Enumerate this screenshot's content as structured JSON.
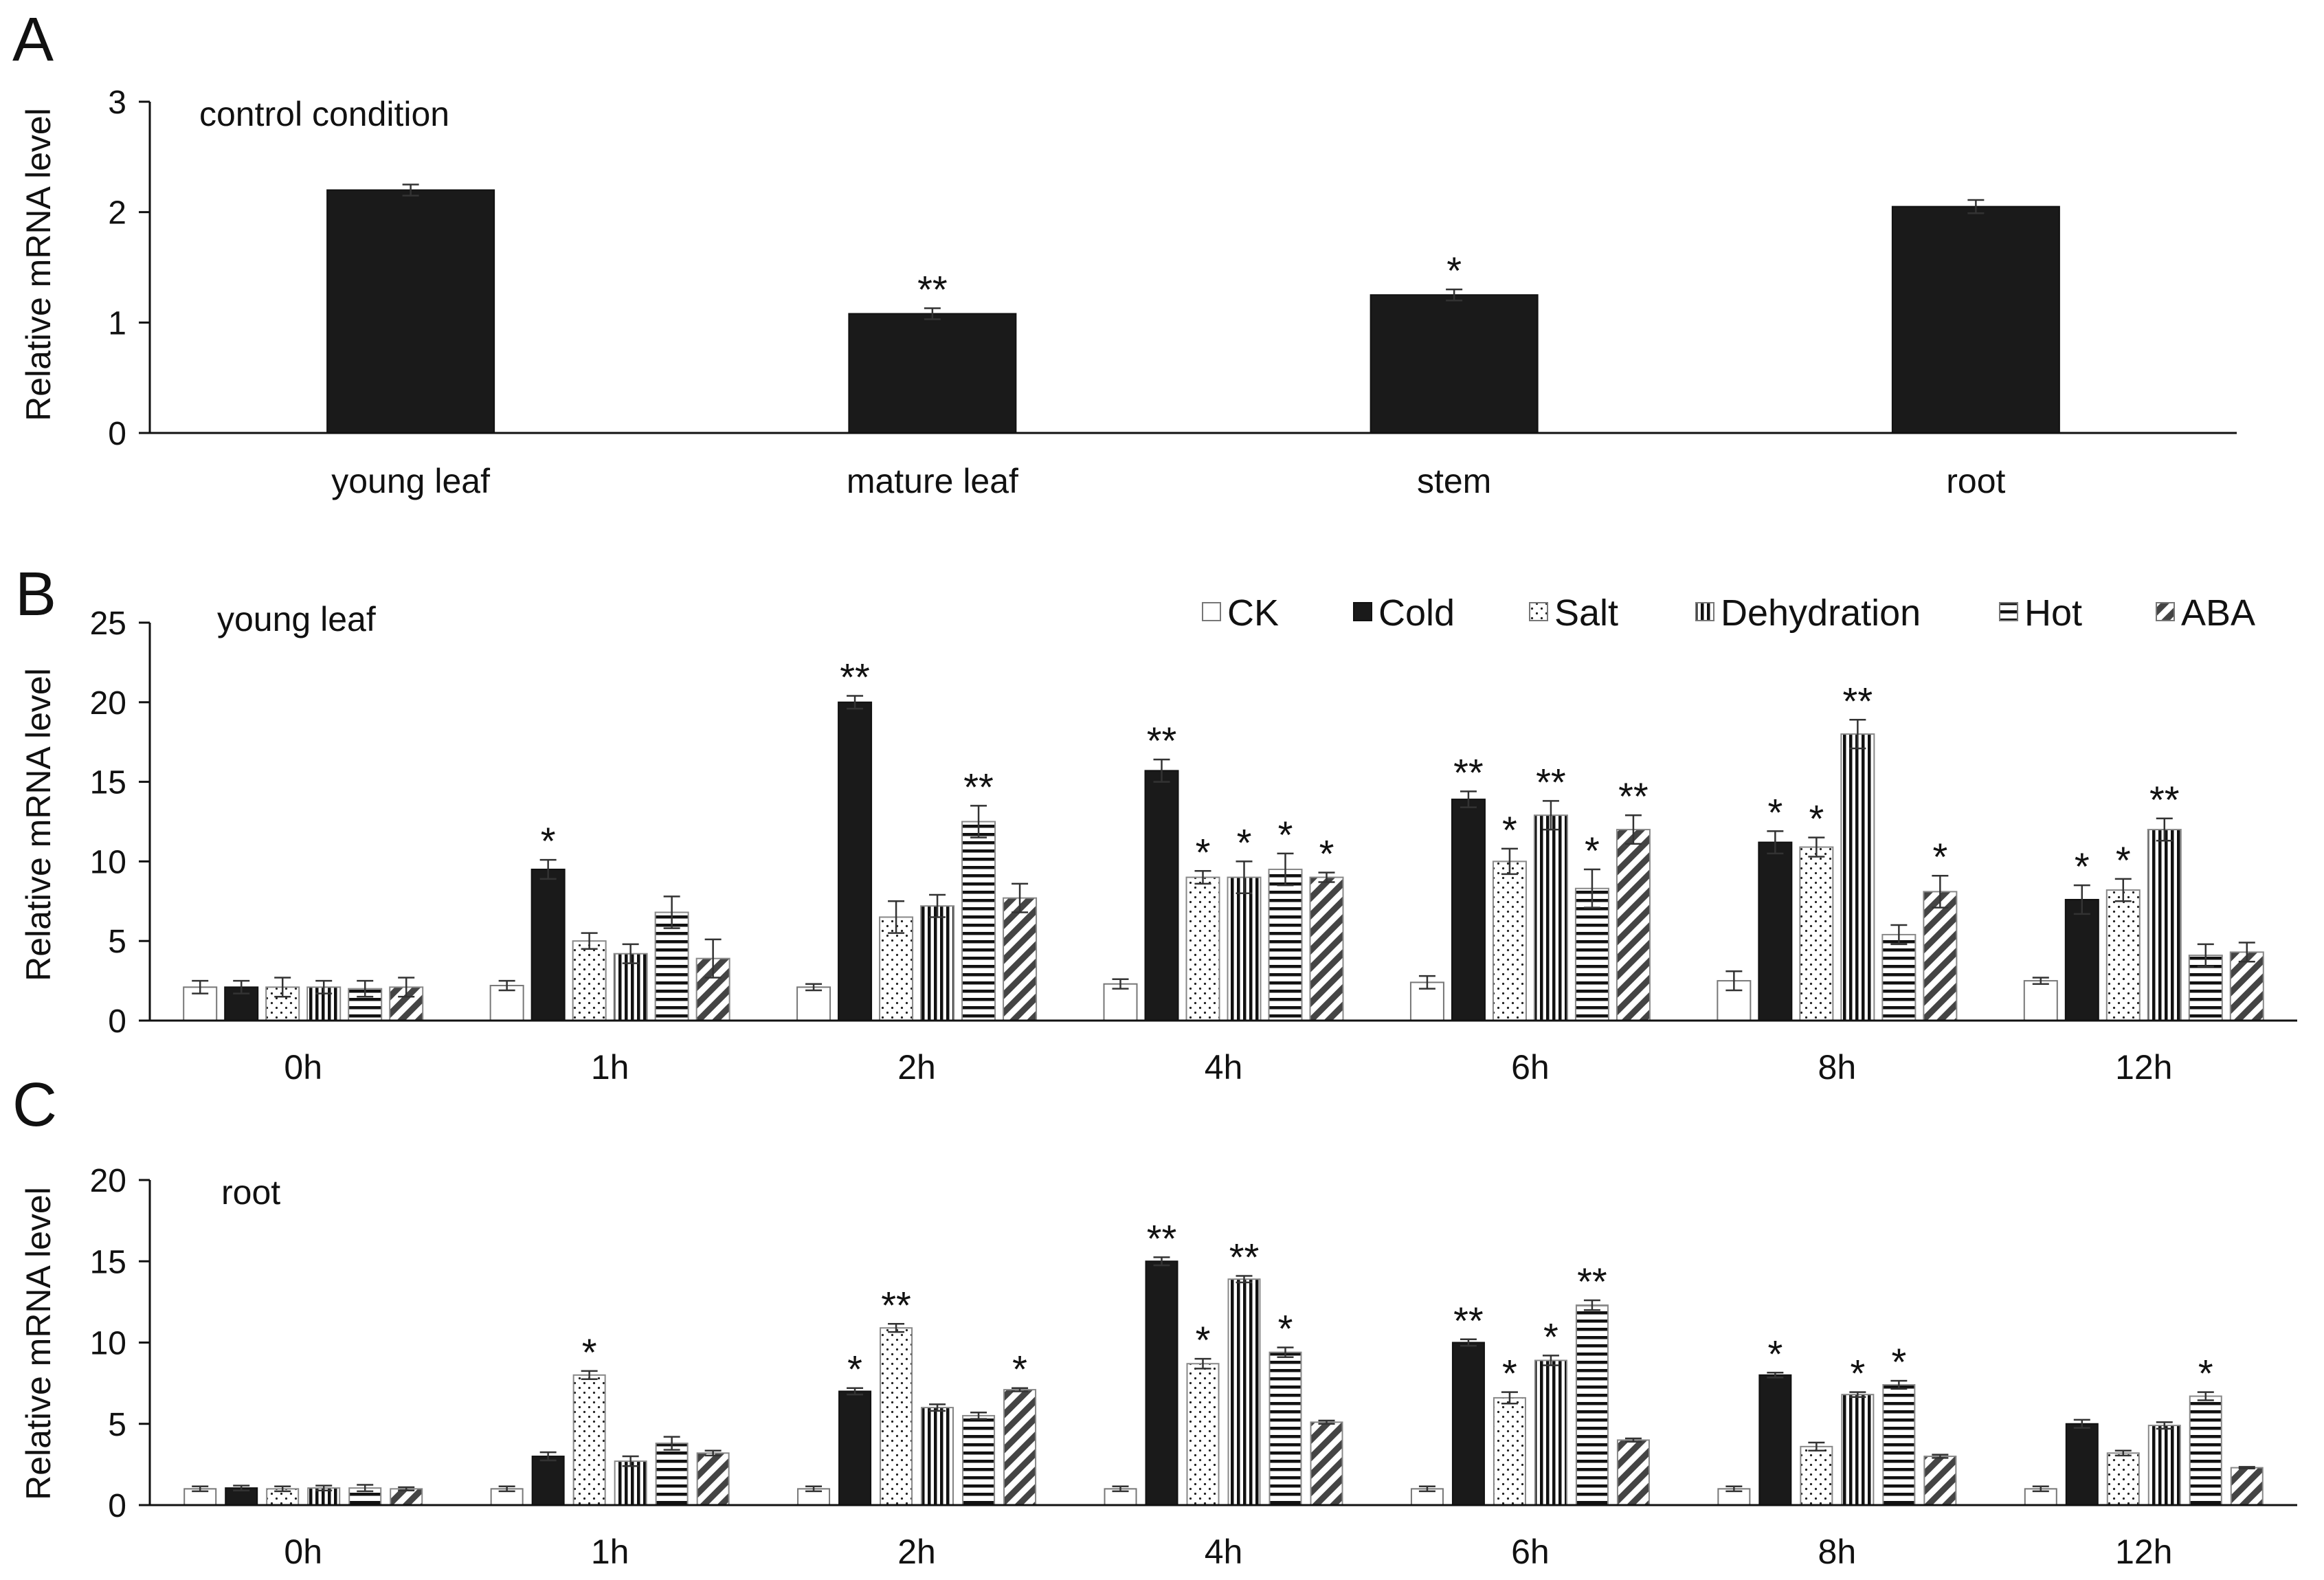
{
  "chart_data": [
    {
      "panel": "A",
      "type": "bar",
      "note": "control condition",
      "ylabel": "Relative mRNA level",
      "xlabel": "",
      "ylim": [
        0,
        3
      ],
      "yticks": [
        "0",
        "1",
        "2",
        "3"
      ],
      "categories": [
        "young leaf",
        "mature leaf",
        "stem",
        "root"
      ],
      "series": [
        {
          "name": "control",
          "values": [
            2.2,
            1.08,
            1.25,
            2.05
          ],
          "errors": [
            0.05,
            0.05,
            0.05,
            0.06
          ],
          "sig": [
            "",
            "**",
            "*",
            ""
          ]
        }
      ]
    },
    {
      "panel": "B",
      "type": "bar",
      "note": "young leaf",
      "ylabel": "Relative mRNA level",
      "xlabel": "",
      "ylim": [
        0,
        25
      ],
      "yticks": [
        "0",
        "5",
        "10",
        "15",
        "20",
        "25"
      ],
      "categories": [
        "0h",
        "1h",
        "2h",
        "4h",
        "6h",
        "8h",
        "12h"
      ],
      "legend": [
        "CK",
        "Cold",
        "Salt",
        "Dehydration",
        "Hot",
        "ABA"
      ],
      "series": [
        {
          "name": "CK",
          "values": [
            2.1,
            2.2,
            2.1,
            2.3,
            2.4,
            2.5,
            2.5
          ],
          "errors": [
            0.4,
            0.3,
            0.2,
            0.3,
            0.4,
            0.6,
            0.2
          ],
          "sig": [
            "",
            "",
            "",
            "",
            "",
            "",
            ""
          ]
        },
        {
          "name": "Cold",
          "values": [
            2.1,
            9.5,
            20.0,
            15.7,
            13.9,
            11.2,
            7.6
          ],
          "errors": [
            0.4,
            0.6,
            0.4,
            0.7,
            0.5,
            0.7,
            0.9
          ],
          "sig": [
            "",
            "*",
            "**",
            "**",
            "**",
            "*",
            "*"
          ]
        },
        {
          "name": "Salt",
          "values": [
            2.1,
            5.0,
            6.5,
            9.0,
            10.0,
            10.9,
            8.2
          ],
          "errors": [
            0.6,
            0.5,
            1.0,
            0.4,
            0.8,
            0.6,
            0.7
          ],
          "sig": [
            "",
            "",
            "",
            "*",
            "*",
            "*",
            "*"
          ]
        },
        {
          "name": "Dehydration",
          "values": [
            2.1,
            4.2,
            7.2,
            9.0,
            12.9,
            18.0,
            12.0
          ],
          "errors": [
            0.4,
            0.6,
            0.7,
            1.0,
            0.9,
            0.9,
            0.7
          ],
          "sig": [
            "",
            "",
            "",
            "*",
            "**",
            "**",
            "**"
          ]
        },
        {
          "name": "Hot",
          "values": [
            2.0,
            6.8,
            12.5,
            9.5,
            8.3,
            5.4,
            4.1
          ],
          "errors": [
            0.5,
            1.0,
            1.0,
            1.0,
            1.2,
            0.6,
            0.7
          ],
          "sig": [
            "",
            "",
            "**",
            "*",
            "*",
            "",
            ""
          ]
        },
        {
          "name": "ABA",
          "values": [
            2.1,
            3.9,
            7.7,
            9.0,
            12.0,
            8.1,
            4.3
          ],
          "errors": [
            0.6,
            1.2,
            0.9,
            0.3,
            0.9,
            1.0,
            0.6
          ],
          "sig": [
            "",
            "",
            "",
            "*",
            "**",
            "*",
            ""
          ]
        }
      ]
    },
    {
      "panel": "C",
      "type": "bar",
      "note": "root",
      "ylabel": "Relative mRNA level",
      "xlabel": "",
      "ylim": [
        0,
        20
      ],
      "yticks": [
        "0",
        "5",
        "10",
        "15",
        "20"
      ],
      "categories": [
        "0h",
        "1h",
        "2h",
        "4h",
        "6h",
        "8h",
        "12h"
      ],
      "series": [
        {
          "name": "CK",
          "values": [
            1.0,
            1.0,
            1.0,
            1.0,
            1.0,
            1.0,
            1.0
          ],
          "errors": [
            0.15,
            0.15,
            0.15,
            0.15,
            0.15,
            0.15,
            0.15
          ],
          "sig": [
            "",
            "",
            "",
            "",
            "",
            "",
            ""
          ]
        },
        {
          "name": "Cold",
          "values": [
            1.05,
            3.0,
            7.0,
            15.0,
            10.0,
            8.0,
            5.0
          ],
          "errors": [
            0.15,
            0.25,
            0.2,
            0.25,
            0.2,
            0.15,
            0.25
          ],
          "sig": [
            "",
            "",
            "*",
            "**",
            "**",
            "*",
            ""
          ]
        },
        {
          "name": "Salt",
          "values": [
            1.0,
            8.0,
            10.9,
            8.7,
            6.6,
            3.6,
            3.2
          ],
          "errors": [
            0.15,
            0.25,
            0.25,
            0.3,
            0.35,
            0.25,
            0.15
          ],
          "sig": [
            "",
            "*",
            "**",
            "*",
            "*",
            "",
            ""
          ]
        },
        {
          "name": "Dehydration",
          "values": [
            1.05,
            2.7,
            6.0,
            13.9,
            8.9,
            6.8,
            4.9
          ],
          "errors": [
            0.15,
            0.3,
            0.2,
            0.2,
            0.3,
            0.15,
            0.2
          ],
          "sig": [
            "",
            "",
            "",
            "**",
            "*",
            "*",
            ""
          ]
        },
        {
          "name": "Hot",
          "values": [
            1.05,
            3.8,
            5.5,
            9.4,
            12.3,
            7.4,
            6.7
          ],
          "errors": [
            0.2,
            0.4,
            0.2,
            0.3,
            0.3,
            0.25,
            0.25
          ],
          "sig": [
            "",
            "",
            "",
            "*",
            "**",
            "*",
            "*"
          ]
        },
        {
          "name": "ABA",
          "values": [
            1.0,
            3.2,
            7.1,
            5.1,
            4.0,
            3.0,
            2.3
          ],
          "errors": [
            0.1,
            0.15,
            0.1,
            0.1,
            0.1,
            0.1,
            0.05
          ],
          "sig": [
            "",
            "",
            "*",
            "",
            "",
            "",
            ""
          ]
        }
      ]
    }
  ]
}
